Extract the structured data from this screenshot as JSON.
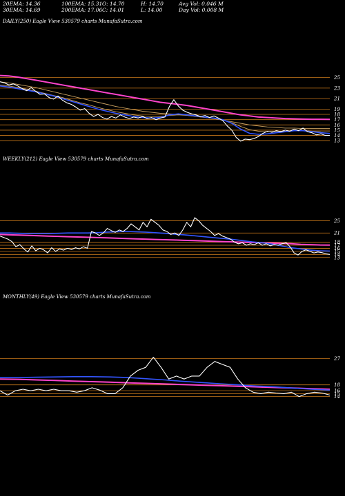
{
  "stats": {
    "ema20": "20EMA: 14.36",
    "ema100": "100EMA: 15.31",
    "open": "O: 14.70",
    "high": "H: 14.70",
    "avg_vol": "Avg Vol: 0.046  M",
    "ema30": "30EMA: 14.69",
    "ema200": "200EMA: 17.06",
    "close": "C: 14.01",
    "low": "L: 14.00",
    "day_vol": "Day Vol: 0.008 M"
  },
  "panels": {
    "daily_label": "DAILY(250) Eagle   View  530579 charts MunafaSutra.com",
    "weekly_label": "WEEKLY(212) Eagle   View  530579 charts MunafaSutra.com",
    "monthly_label": "MONTHLY(49) Eagle   View  530579 charts MunafaSutra.com"
  },
  "colors": {
    "background": "#000000",
    "price": "#ffffff",
    "ema20": "#3355ff",
    "ema200": "#ff44cc",
    "ema_other": "#c8a060",
    "level_line": "#cc7a1a"
  },
  "chart_data": [
    {
      "type": "line",
      "timeframe": "DAILY",
      "title": "DAILY(250) Eagle   View  530579 charts MunafaSutra.com",
      "y_ticks": [
        "25",
        "23",
        "21",
        "19",
        "18",
        "17",
        "16",
        "15",
        "14",
        "13"
      ],
      "ylim": [
        12.5,
        26
      ],
      "price": [
        24.2,
        24.0,
        23.6,
        23.8,
        23.4,
        22.9,
        22.5,
        23.1,
        22.4,
        21.8,
        21.9,
        21.2,
        20.9,
        21.5,
        20.7,
        20.2,
        19.9,
        19.4,
        18.8,
        19.1,
        18.2,
        17.6,
        18.0,
        17.4,
        17.1,
        17.6,
        17.3,
        17.9,
        17.5,
        17.2,
        17.5,
        17.3,
        17.6,
        17.2,
        17.4,
        17.0,
        17.3,
        17.5,
        19.5,
        20.8,
        19.6,
        18.8,
        18.4,
        18.1,
        17.9,
        17.6,
        17.8,
        17.4,
        17.7,
        17.3,
        16.8,
        15.8,
        15.0,
        13.6,
        12.9,
        13.3,
        13.2,
        13.4,
        13.8,
        14.4,
        14.8,
        14.6,
        14.9,
        14.7,
        15.0,
        14.8,
        15.2,
        14.9,
        15.4,
        14.7,
        14.5,
        14.1,
        14.3,
        14.0,
        14.01
      ],
      "ema20": [
        23.4,
        23.2,
        22.9,
        22.6,
        22.3,
        21.9,
        21.5,
        21.0,
        20.5,
        20.0,
        19.5,
        19.0,
        18.6,
        18.2,
        17.9,
        17.6,
        17.4,
        17.3,
        17.4,
        17.9,
        18.1,
        17.9,
        17.7,
        17.5,
        17.3,
        17.0,
        16.3,
        15.2,
        14.4,
        14.2,
        14.3,
        14.5,
        14.7,
        14.9,
        14.9,
        14.7,
        14.5,
        14.36
      ],
      "ema30": [
        23.6,
        23.4,
        23.1,
        22.8,
        22.4,
        22.0,
        21.6,
        21.2,
        20.7,
        20.2,
        19.8,
        19.3,
        18.9,
        18.5,
        18.2,
        17.9,
        17.7,
        17.6,
        17.6,
        17.8,
        17.9,
        17.8,
        17.6,
        17.4,
        17.2,
        16.9,
        16.4,
        15.7,
        15.1,
        14.8,
        14.7,
        14.8,
        14.8,
        14.9,
        14.9,
        14.8,
        14.7,
        14.69
      ],
      "ema100": [
        24.2,
        24.0,
        23.7,
        23.4,
        23.1,
        22.7,
        22.3,
        21.9,
        21.5,
        21.1,
        20.7,
        20.3,
        19.9,
        19.5,
        19.2,
        18.9,
        18.6,
        18.4,
        18.2,
        18.1,
        18.0,
        17.8,
        17.6,
        17.4,
        17.2,
        16.9,
        16.6,
        16.3,
        16.0,
        15.8,
        15.6,
        15.5,
        15.4,
        15.4,
        15.3,
        15.3,
        15.3,
        15.31
      ],
      "ema200": [
        25.4,
        25.3,
        25.1,
        24.8,
        24.5,
        24.2,
        23.9,
        23.6,
        23.3,
        23.0,
        22.7,
        22.4,
        22.1,
        21.8,
        21.5,
        21.2,
        20.9,
        20.6,
        20.3,
        20.1,
        19.9,
        19.7,
        19.4,
        19.1,
        18.8,
        18.5,
        18.2,
        17.9,
        17.7,
        17.5,
        17.4,
        17.3,
        17.2,
        17.15,
        17.1,
        17.08,
        17.07,
        17.06
      ]
    },
    {
      "type": "line",
      "timeframe": "WEEKLY",
      "title": "WEEKLY(212) Eagle   View  530579 charts MunafaSutra.com",
      "y_ticks": [
        "25",
        "21",
        "18",
        "17",
        "16",
        "15",
        "14",
        "13"
      ],
      "ylim": [
        12.5,
        26
      ],
      "price": [
        20,
        19.5,
        19,
        18.2,
        16.5,
        17.2,
        15.8,
        14.8,
        16.8,
        15.2,
        16,
        15.5,
        14.5,
        16.2,
        15,
        15.8,
        15.4,
        16,
        15.6,
        16.2,
        15.8,
        16.5,
        16,
        21.5,
        21,
        20.2,
        21,
        22.5,
        21.8,
        21.2,
        22,
        21.5,
        22.5,
        24,
        23,
        22,
        24.5,
        23,
        25.5,
        24.5,
        23.5,
        22,
        21.5,
        20.5,
        21,
        20.2,
        22,
        24.5,
        23,
        26,
        25,
        23.5,
        22.5,
        21.5,
        20.2,
        20.8,
        20,
        19.5,
        19,
        18,
        17.5,
        17.8,
        17,
        17.5,
        17.2,
        17.8,
        17,
        17.5,
        16.8,
        17.2,
        17,
        17.5,
        17.8,
        16.5,
        14.5,
        13.8,
        15,
        15.5,
        15,
        14.5,
        14.8,
        14.6,
        14.2,
        14.01
      ],
      "ema20": [
        21,
        21,
        20.9,
        20.8,
        20.8,
        20.8,
        20.9,
        21,
        21,
        21,
        21.1,
        21.3,
        21.4,
        21.5,
        21.4,
        21.3,
        21.1,
        20.9,
        20.6,
        20.4,
        20.1,
        19.8,
        19.5,
        19.2,
        18.9,
        18.5,
        18.1,
        17.8,
        17.4,
        16.8,
        16.2,
        15.8,
        15.4,
        15.2,
        15.1
      ],
      "ema200": [
        20.5,
        20.4,
        20.3,
        20.2,
        20.1,
        20.0,
        19.9,
        19.8,
        19.7,
        19.6,
        19.5,
        19.4,
        19.3,
        19.2,
        19.1,
        19.0,
        18.9,
        18.8,
        18.7,
        18.6,
        18.5,
        18.4,
        18.3,
        18.2,
        18.1,
        18.0,
        17.9,
        17.8,
        17.7,
        17.6,
        17.5,
        17.3,
        17.2,
        17.1,
        17.06
      ]
    },
    {
      "type": "line",
      "timeframe": "MONTHLY",
      "title": "MONTHLY(49) Eagle   View  530579 charts MunafaSutra.com",
      "y_ticks": [
        "27",
        "18",
        "16",
        "15",
        "14"
      ],
      "ylim": [
        12.5,
        29
      ],
      "price": [
        16.0,
        14.5,
        16.0,
        16.5,
        16.0,
        16.5,
        16.0,
        16.5,
        16.0,
        16.0,
        15.5,
        16.0,
        17.0,
        16.2,
        15.0,
        15.0,
        17.0,
        21.0,
        23.0,
        24.0,
        27.5,
        24.0,
        20.0,
        21.0,
        20.0,
        21.0,
        21.0,
        24.0,
        26.0,
        25.0,
        24.0,
        20.0,
        17.0,
        15.5,
        15.0,
        15.5,
        15.2,
        15.0,
        15.5,
        14.0,
        15.0,
        15.5,
        15.2,
        14.5
      ],
      "ema20": [
        20.5,
        20.5,
        20.6,
        20.7,
        20.8,
        20.8,
        20.7,
        20.5,
        20.1,
        19.7,
        19.2,
        18.8,
        18.4,
        18.0,
        17.6,
        17.3,
        16.9,
        16.5,
        16.2
      ],
      "ema200": [
        20.0,
        19.9,
        19.7,
        19.5,
        19.3,
        19.1,
        18.9,
        18.7,
        18.5,
        18.3,
        18.1,
        17.9,
        17.7,
        17.5,
        17.3,
        17.1,
        16.9,
        16.7,
        16.5
      ]
    }
  ]
}
